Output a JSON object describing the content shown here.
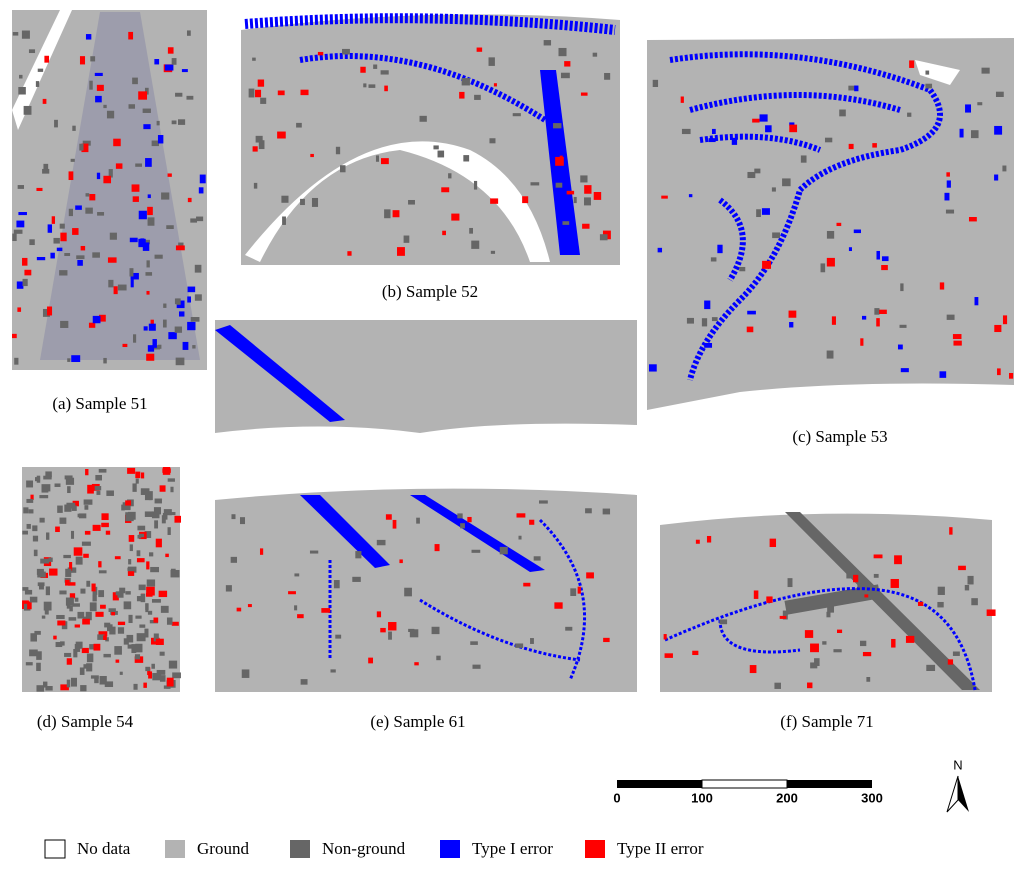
{
  "panels": [
    {
      "caption": "(a) Sample 51"
    },
    {
      "caption": "(b) Sample 52"
    },
    {
      "caption": "(c) Sample 53"
    },
    {
      "caption": "(d) Sample 54"
    },
    {
      "caption": "(e) Sample 61"
    },
    {
      "caption": "(f) Sample 71"
    }
  ],
  "scale_bar": {
    "labels": [
      0,
      100,
      200,
      300
    ]
  },
  "north_arrow": {
    "label": "N"
  },
  "legend": [
    {
      "label": "No data",
      "color": "#ffffff"
    },
    {
      "label": "Ground",
      "color": "#b3b3b3"
    },
    {
      "label": "Non-ground",
      "color": "#666666"
    },
    {
      "label": "Type I error",
      "color": "#0000ff"
    },
    {
      "label": "Type II error",
      "color": "#ff0000"
    }
  ]
}
